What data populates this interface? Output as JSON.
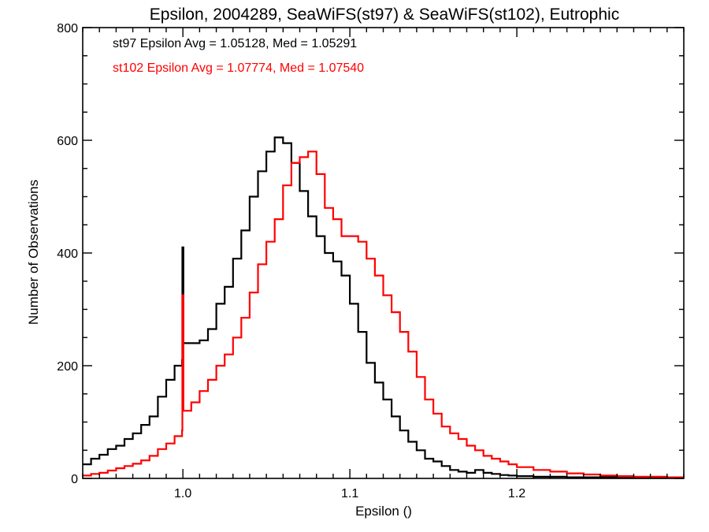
{
  "chart_data": {
    "type": "line",
    "title": "Epsilon, 2004289, SeaWiFS(st97) & SeaWiFS(st102), Eutrophic",
    "xlabel": "Epsilon ()",
    "ylabel": "Number of Observations",
    "xlim": [
      0.94,
      1.3
    ],
    "ylim": [
      0,
      800
    ],
    "xticks": [
      1.0,
      1.1,
      1.2
    ],
    "xtick_labels": [
      "1.0",
      "1.1",
      "1.2"
    ],
    "yticks": [
      0,
      200,
      400,
      600,
      800
    ],
    "ytick_labels": [
      "0",
      "200",
      "400",
      "600",
      "800"
    ],
    "legend_position": "top-left",
    "annotations": [
      {
        "text": "st97 Epsilon Avg = 1.05128, Med = 1.05291",
        "color": "#000000"
      },
      {
        "text": "st102 Epsilon Avg = 1.07774, Med = 1.07540",
        "color": "#ff0000"
      }
    ],
    "series": [
      {
        "color": "#000000",
        "points": [
          [
            0.94,
            25
          ],
          [
            0.945,
            35
          ],
          [
            0.95,
            42
          ],
          [
            0.955,
            52
          ],
          [
            0.96,
            58
          ],
          [
            0.965,
            70
          ],
          [
            0.97,
            80
          ],
          [
            0.975,
            95
          ],
          [
            0.98,
            110
          ],
          [
            0.985,
            145
          ],
          [
            0.99,
            175
          ],
          [
            0.995,
            200
          ],
          [
            0.9995,
            210
          ],
          [
            0.9997,
            410
          ],
          [
            1.0,
            410
          ],
          [
            1.0003,
            240
          ],
          [
            1.005,
            240
          ],
          [
            1.01,
            245
          ],
          [
            1.015,
            265
          ],
          [
            1.02,
            310
          ],
          [
            1.025,
            340
          ],
          [
            1.03,
            390
          ],
          [
            1.035,
            440
          ],
          [
            1.04,
            500
          ],
          [
            1.045,
            545
          ],
          [
            1.05,
            580
          ],
          [
            1.055,
            605
          ],
          [
            1.06,
            595
          ],
          [
            1.065,
            560
          ],
          [
            1.07,
            510
          ],
          [
            1.075,
            465
          ],
          [
            1.08,
            430
          ],
          [
            1.085,
            400
          ],
          [
            1.09,
            385
          ],
          [
            1.095,
            360
          ],
          [
            1.1,
            310
          ],
          [
            1.105,
            260
          ],
          [
            1.11,
            205
          ],
          [
            1.115,
            170
          ],
          [
            1.12,
            140
          ],
          [
            1.125,
            110
          ],
          [
            1.13,
            85
          ],
          [
            1.135,
            65
          ],
          [
            1.14,
            50
          ],
          [
            1.145,
            35
          ],
          [
            1.15,
            30
          ],
          [
            1.155,
            22
          ],
          [
            1.16,
            15
          ],
          [
            1.165,
            12
          ],
          [
            1.17,
            10
          ],
          [
            1.175,
            15
          ],
          [
            1.18,
            10
          ],
          [
            1.185,
            8
          ],
          [
            1.19,
            6
          ],
          [
            1.195,
            5
          ],
          [
            1.2,
            4
          ],
          [
            1.21,
            3
          ],
          [
            1.22,
            3
          ],
          [
            1.23,
            2
          ],
          [
            1.24,
            2
          ],
          [
            1.25,
            2
          ],
          [
            1.26,
            1
          ],
          [
            1.27,
            1
          ],
          [
            1.28,
            1
          ],
          [
            1.29,
            1
          ],
          [
            1.3,
            1
          ]
        ]
      },
      {
        "color": "#ff0000",
        "points": [
          [
            0.94,
            5
          ],
          [
            0.945,
            8
          ],
          [
            0.95,
            10
          ],
          [
            0.955,
            14
          ],
          [
            0.96,
            18
          ],
          [
            0.965,
            22
          ],
          [
            0.97,
            26
          ],
          [
            0.975,
            32
          ],
          [
            0.98,
            40
          ],
          [
            0.985,
            52
          ],
          [
            0.99,
            62
          ],
          [
            0.995,
            75
          ],
          [
            0.9995,
            85
          ],
          [
            0.9997,
            325
          ],
          [
            1.0,
            325
          ],
          [
            1.0003,
            120
          ],
          [
            1.005,
            135
          ],
          [
            1.01,
            155
          ],
          [
            1.015,
            175
          ],
          [
            1.02,
            200
          ],
          [
            1.025,
            220
          ],
          [
            1.03,
            250
          ],
          [
            1.035,
            285
          ],
          [
            1.04,
            330
          ],
          [
            1.045,
            380
          ],
          [
            1.05,
            420
          ],
          [
            1.055,
            460
          ],
          [
            1.06,
            520
          ],
          [
            1.065,
            560
          ],
          [
            1.07,
            570
          ],
          [
            1.075,
            580
          ],
          [
            1.08,
            540
          ],
          [
            1.085,
            480
          ],
          [
            1.09,
            460
          ],
          [
            1.095,
            430
          ],
          [
            1.1,
            430
          ],
          [
            1.105,
            420
          ],
          [
            1.11,
            390
          ],
          [
            1.115,
            360
          ],
          [
            1.12,
            325
          ],
          [
            1.125,
            295
          ],
          [
            1.13,
            260
          ],
          [
            1.135,
            225
          ],
          [
            1.14,
            180
          ],
          [
            1.145,
            140
          ],
          [
            1.15,
            115
          ],
          [
            1.155,
            92
          ],
          [
            1.16,
            80
          ],
          [
            1.165,
            70
          ],
          [
            1.17,
            58
          ],
          [
            1.175,
            50
          ],
          [
            1.18,
            40
          ],
          [
            1.185,
            35
          ],
          [
            1.19,
            30
          ],
          [
            1.195,
            25
          ],
          [
            1.2,
            20
          ],
          [
            1.21,
            15
          ],
          [
            1.22,
            12
          ],
          [
            1.23,
            9
          ],
          [
            1.24,
            7
          ],
          [
            1.25,
            5
          ],
          [
            1.26,
            4
          ],
          [
            1.27,
            3
          ],
          [
            1.28,
            3
          ],
          [
            1.29,
            2
          ],
          [
            1.3,
            2
          ]
        ]
      }
    ]
  }
}
